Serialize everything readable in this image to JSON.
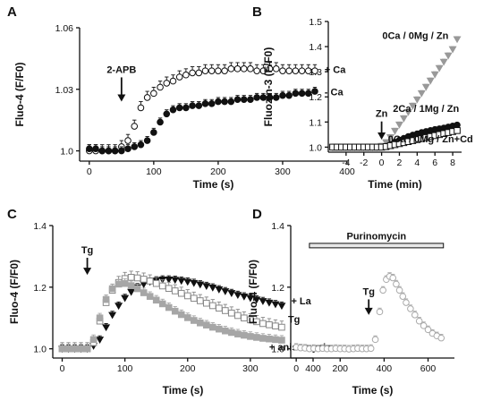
{
  "chart_data": [
    {
      "panel": "A",
      "type": "line",
      "xlabel": "Time (s)",
      "ylabel": "Fluo-4 (F/F0)",
      "xlim": [
        -15,
        400
      ],
      "ylim": [
        0.995,
        1.06
      ],
      "xticks": [
        0,
        100,
        200,
        300,
        400
      ],
      "yticks": [
        1.0,
        1.03,
        1.06
      ],
      "ytick_labels": [
        "1.0",
        "1.03",
        "1.06"
      ],
      "grid": false,
      "annotations": [
        {
          "text": "2-APB",
          "x": 50,
          "y": 1.038,
          "arrow_tip": 1.024
        },
        {
          "text": "+ Ca",
          "x": 365,
          "y": 1.038
        },
        {
          "text": "- Ca",
          "x": 365,
          "y": 1.027
        }
      ],
      "series": [
        {
          "name": "+ Ca",
          "marker": "circle-open",
          "color": "#111111",
          "error": 0.003,
          "x": [
            0,
            10,
            20,
            30,
            40,
            50,
            60,
            70,
            80,
            90,
            100,
            110,
            120,
            130,
            140,
            150,
            160,
            170,
            180,
            190,
            200,
            210,
            220,
            230,
            240,
            250,
            260,
            270,
            280,
            290,
            300,
            310,
            320,
            330,
            340,
            350
          ],
          "y": [
            1.0,
            1.0,
            1.0,
            1.0,
            1.0,
            1.002,
            1.005,
            1.012,
            1.021,
            1.026,
            1.028,
            1.031,
            1.033,
            1.034,
            1.036,
            1.037,
            1.038,
            1.038,
            1.039,
            1.039,
            1.039,
            1.039,
            1.04,
            1.04,
            1.04,
            1.04,
            1.039,
            1.039,
            1.04,
            1.04,
            1.039,
            1.039,
            1.039,
            1.039,
            1.039,
            1.039
          ]
        },
        {
          "name": "- Ca",
          "marker": "circle-filled",
          "color": "#111111",
          "error": 0.002,
          "x": [
            0,
            10,
            20,
            30,
            40,
            50,
            60,
            70,
            80,
            90,
            100,
            110,
            120,
            130,
            140,
            150,
            160,
            170,
            180,
            190,
            200,
            210,
            220,
            230,
            240,
            250,
            260,
            270,
            280,
            290,
            300,
            310,
            320,
            330,
            340,
            350
          ],
          "y": [
            1.001,
            1.001,
            1.0,
            1.0,
            1.0,
            1.0,
            1.001,
            1.002,
            1.003,
            1.005,
            1.009,
            1.014,
            1.018,
            1.02,
            1.021,
            1.021,
            1.022,
            1.022,
            1.023,
            1.023,
            1.024,
            1.024,
            1.024,
            1.025,
            1.025,
            1.025,
            1.026,
            1.026,
            1.026,
            1.026,
            1.027,
            1.027,
            1.028,
            1.028,
            1.028,
            1.029
          ]
        }
      ]
    },
    {
      "panel": "B",
      "type": "line",
      "xlabel": "Time (min)",
      "ylabel": "Fluozin-3 (F/F0)",
      "xlim": [
        -6,
        9
      ],
      "ylim": [
        0.98,
        1.5
      ],
      "xticks": [
        -4,
        -2,
        0,
        2,
        4,
        6,
        8
      ],
      "yticks": [
        1.0,
        1.1,
        1.2,
        1.3,
        1.4,
        1.5
      ],
      "ytick_labels": [
        "1.0",
        "1.1",
        "1.2",
        "1.3",
        "1.4",
        "1.5"
      ],
      "grid": false,
      "annotations": [
        {
          "text": "Zn",
          "x": 0,
          "y": 1.12,
          "arrow_tip": 1.03
        },
        {
          "text": "0Ca / 0Mg / Zn",
          "x": 3.8,
          "y": 1.43
        },
        {
          "text": "2Ca / 1Mg / Zn",
          "x": 5.0,
          "y": 1.14
        },
        {
          "text": "0Ca / 0Mg / Zn+Cd",
          "x": 5.5,
          "y": 1.02
        }
      ],
      "series": [
        {
          "name": "0Ca / 0Mg / Zn",
          "marker": "triangle-down-filled",
          "color": "#999999",
          "error": 0.01,
          "x": [
            -5.5,
            -5,
            -4.5,
            -4,
            -3.5,
            -3,
            -2.5,
            -2,
            -1.5,
            -1,
            -0.5,
            0,
            0.5,
            1,
            1.5,
            2,
            2.5,
            3,
            3.5,
            4,
            4.5,
            5,
            5.5,
            6,
            6.5,
            7,
            7.5,
            8,
            8.5
          ],
          "y": [
            1.0,
            1.0,
            1.0,
            1.0,
            1.0,
            1.0,
            1.0,
            1.0,
            1.0,
            1.0,
            1.0,
            1.005,
            1.02,
            1.04,
            1.065,
            1.09,
            1.115,
            1.14,
            1.165,
            1.19,
            1.215,
            1.24,
            1.265,
            1.29,
            1.315,
            1.34,
            1.365,
            1.39,
            1.43
          ]
        },
        {
          "name": "2Ca / 1Mg / Zn",
          "marker": "circle-filled",
          "color": "#111111",
          "error": 0.004,
          "x": [
            -5.5,
            -5,
            -4.5,
            -4,
            -3.5,
            -3,
            -2.5,
            -2,
            -1.5,
            -1,
            -0.5,
            0,
            0.5,
            1,
            1.5,
            2,
            2.5,
            3,
            3.5,
            4,
            4.5,
            5,
            5.5,
            6,
            6.5,
            7,
            7.5,
            8,
            8.5
          ],
          "y": [
            1.0,
            1.0,
            1.0,
            1.0,
            1.0,
            1.0,
            1.0,
            1.0,
            1.0,
            1.0,
            1.0,
            1.0,
            1.003,
            1.01,
            1.02,
            1.028,
            1.035,
            1.042,
            1.048,
            1.053,
            1.058,
            1.062,
            1.066,
            1.07,
            1.073,
            1.076,
            1.08,
            1.084,
            1.088
          ]
        },
        {
          "name": "0Ca / 0Mg / Zn+Cd",
          "marker": "square-open",
          "color": "#111111",
          "error": 0.003,
          "x": [
            -5.5,
            -5,
            -4.5,
            -4,
            -3.5,
            -3,
            -2.5,
            -2,
            -1.5,
            -1,
            -0.5,
            0,
            0.5,
            1,
            1.5,
            2,
            2.5,
            3,
            3.5,
            4,
            4.5,
            5,
            5.5,
            6,
            6.5,
            7,
            7.5,
            8,
            8.5
          ],
          "y": [
            1.0,
            1.0,
            1.0,
            1.0,
            1.0,
            1.0,
            1.0,
            1.0,
            1.0,
            1.0,
            1.0,
            1.0,
            1.002,
            1.006,
            1.01,
            1.014,
            1.018,
            1.022,
            1.026,
            1.03,
            1.034,
            1.038,
            1.042,
            1.046,
            1.05,
            1.054,
            1.058,
            1.062,
            1.066
          ]
        }
      ]
    },
    {
      "panel": "C",
      "type": "line",
      "xlabel": "Time (s)",
      "ylabel": "Fluo-4 (F/F0)",
      "xlim": [
        -15,
        400
      ],
      "ylim": [
        0.97,
        1.4
      ],
      "xticks": [
        0,
        100,
        200,
        300,
        400
      ],
      "yticks": [
        1.0,
        1.2,
        1.4
      ],
      "ytick_labels": [
        "1.0",
        "1.2",
        "1.4"
      ],
      "grid": false,
      "annotations": [
        {
          "text": "Tg",
          "x": 40,
          "y": 1.31,
          "arrow_tip": 1.24
        },
        {
          "text": "+ La",
          "x": 365,
          "y": 1.145
        },
        {
          "text": "Tg",
          "x": 360,
          "y": 1.085
        },
        {
          "text": "+ anisomycin",
          "x": 330,
          "y": 0.995
        }
      ],
      "series": [
        {
          "name": "+ La",
          "marker": "triangle-down-filled",
          "color": "#111111",
          "error": 0.012,
          "x": [
            0,
            10,
            20,
            30,
            40,
            50,
            60,
            70,
            80,
            90,
            100,
            110,
            120,
            130,
            140,
            150,
            160,
            170,
            180,
            190,
            200,
            210,
            220,
            230,
            240,
            250,
            260,
            270,
            280,
            290,
            300,
            310,
            320,
            330,
            340,
            350
          ],
          "y": [
            1.0,
            1.0,
            1.0,
            1.0,
            1.0,
            1.01,
            1.03,
            1.07,
            1.11,
            1.14,
            1.165,
            1.185,
            1.2,
            1.21,
            1.218,
            1.222,
            1.225,
            1.225,
            1.224,
            1.221,
            1.218,
            1.214,
            1.209,
            1.204,
            1.199,
            1.193,
            1.187,
            1.181,
            1.175,
            1.17,
            1.165,
            1.16,
            1.155,
            1.15,
            1.145,
            1.14
          ]
        },
        {
          "name": "Tg",
          "marker": "square-open",
          "color": "#888888",
          "error": 0.02,
          "x": [
            0,
            10,
            20,
            30,
            40,
            50,
            60,
            70,
            80,
            90,
            100,
            110,
            120,
            130,
            140,
            150,
            160,
            170,
            180,
            190,
            200,
            210,
            220,
            230,
            240,
            250,
            260,
            270,
            280,
            290,
            300,
            310,
            320,
            330,
            340,
            350
          ],
          "y": [
            1.0,
            1.0,
            1.0,
            1.0,
            1.0,
            1.02,
            1.09,
            1.15,
            1.19,
            1.215,
            1.228,
            1.232,
            1.23,
            1.226,
            1.22,
            1.212,
            1.204,
            1.196,
            1.188,
            1.18,
            1.172,
            1.164,
            1.156,
            1.148,
            1.14,
            1.132,
            1.124,
            1.116,
            1.108,
            1.1,
            1.094,
            1.088,
            1.082,
            1.078,
            1.074,
            1.07
          ]
        },
        {
          "name": "+ anisomycin",
          "marker": "square-filled",
          "color": "#a6a6a6",
          "error": 0.015,
          "x": [
            0,
            10,
            20,
            30,
            40,
            50,
            60,
            70,
            80,
            90,
            100,
            110,
            120,
            130,
            140,
            150,
            160,
            170,
            180,
            190,
            200,
            210,
            220,
            230,
            240,
            250,
            260,
            270,
            280,
            290,
            300,
            310,
            320,
            330,
            340,
            350
          ],
          "y": [
            1.0,
            1.0,
            1.0,
            1.0,
            1.0,
            1.03,
            1.1,
            1.16,
            1.195,
            1.21,
            1.212,
            1.205,
            1.195,
            1.182,
            1.17,
            1.158,
            1.146,
            1.134,
            1.122,
            1.111,
            1.101,
            1.092,
            1.084,
            1.077,
            1.07,
            1.064,
            1.058,
            1.053,
            1.048,
            1.044,
            1.04,
            1.037,
            1.034,
            1.032,
            1.03,
            1.028
          ]
        }
      ]
    },
    {
      "panel": "D",
      "type": "line",
      "xlabel": "Time (s)",
      "ylabel": "Fluo-4 (F/F0)",
      "xlim": [
        -25,
        720
      ],
      "ylim": [
        0.97,
        1.4
      ],
      "xticks": [
        0,
        200,
        400,
        600
      ],
      "yticks": [
        1.0,
        1.2,
        1.4
      ],
      "ytick_labels": [
        "1.0",
        "1.2",
        "1.4"
      ],
      "grid": false,
      "annotations": [
        {
          "text": "Purinomycin",
          "bar_start": 60,
          "bar_end": 670,
          "y": 1.335
        },
        {
          "text": "Tg",
          "x": 330,
          "y": 1.175,
          "arrow_tip": 1.11
        }
      ],
      "series": [
        {
          "name": "Tg",
          "marker": "circle-open",
          "color": "#aaaaaa",
          "error": 0.012,
          "x": [
            0,
            20,
            40,
            60,
            80,
            100,
            120,
            140,
            160,
            180,
            200,
            220,
            240,
            260,
            280,
            300,
            320,
            340,
            360,
            380,
            395,
            410,
            425,
            440,
            455,
            470,
            485,
            500,
            520,
            540,
            560,
            580,
            600,
            620,
            640,
            660
          ],
          "y": [
            1.005,
            1.003,
            1.002,
            1.0,
            1.001,
            1.0,
            1.001,
            1.0,
            1.0,
            1.001,
            1.0,
            1.0,
            0.999,
            1.0,
            1.001,
            1.0,
            1.0,
            1.001,
            1.03,
            1.12,
            1.19,
            1.225,
            1.235,
            1.23,
            1.21,
            1.19,
            1.17,
            1.15,
            1.13,
            1.11,
            1.09,
            1.075,
            1.062,
            1.05,
            1.042,
            1.035
          ]
        }
      ]
    }
  ]
}
